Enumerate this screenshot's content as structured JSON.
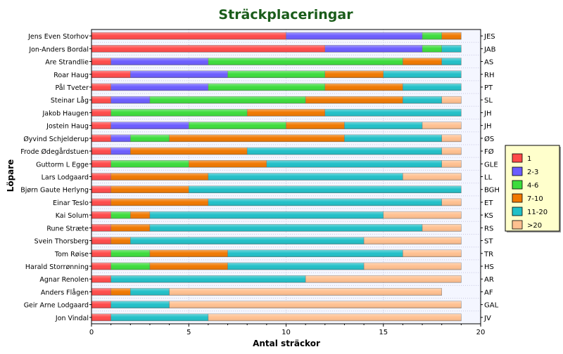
{
  "chart_data": {
    "type": "bar",
    "orientation": "horizontal",
    "stacked": true,
    "title": "Sträckplaceringar",
    "xlabel": "Antal sträckor",
    "ylabel": "Löpare",
    "xlim": [
      0,
      20
    ],
    "x_ticks": [
      "0",
      "5",
      "10",
      "15",
      "20"
    ],
    "grid": true,
    "legend_position": "right",
    "categories": [
      "Jens Even Storhov",
      "Jon-Anders Bordal",
      "Are Strandlie",
      "Roar Haug",
      "Pål Tveter",
      "Steinar Låg",
      "Jakob Haugen",
      "Jostein Haug",
      "Øyvind Schjelderup",
      "Frode Ødegårdstuen",
      "Guttorm L Egge",
      "Lars Lodgaard",
      "Bjørn Gaute Herlyng",
      "Einar Teslo",
      "Kai Solum",
      "Rune Stræte",
      "Svein Thorsberg",
      "Tom Røise",
      "Harald Storrønning",
      "Agnar Renolen",
      "Anders Flågen",
      "Geir Arne Lodgaard",
      "Jon Vindal"
    ],
    "initials": [
      "JES",
      "JAB",
      "AS",
      "RH",
      "PT",
      "SL",
      "JH",
      "JH",
      "ØS",
      "FØ",
      "GLE",
      "LL",
      "BGH",
      "ET",
      "KS",
      "RS",
      "ST",
      "TR",
      "HS",
      "AR",
      "AF",
      "GAL",
      "JV"
    ],
    "series": [
      {
        "name": "1",
        "color": "#ff4a4a",
        "values": [
          10,
          12,
          1,
          2,
          1,
          1,
          1,
          1,
          1,
          1,
          1,
          1,
          1,
          1,
          1,
          1,
          1,
          1,
          1,
          1,
          1,
          1,
          1
        ]
      },
      {
        "name": "2-3",
        "color": "#6b5cff",
        "values": [
          7,
          5,
          5,
          5,
          5,
          2,
          0,
          4,
          1,
          1,
          0,
          0,
          0,
          0,
          0,
          0,
          0,
          0,
          0,
          0,
          0,
          0,
          0
        ]
      },
      {
        "name": "4-6",
        "color": "#3cdc3c",
        "values": [
          1,
          1,
          10,
          5,
          6,
          8,
          7,
          5,
          2,
          0,
          4,
          0,
          0,
          0,
          1,
          0,
          0,
          2,
          2,
          0,
          0,
          0,
          0
        ]
      },
      {
        "name": "7-10",
        "color": "#f07800",
        "values": [
          1,
          0,
          2,
          3,
          4,
          5,
          4,
          3,
          9,
          6,
          4,
          5,
          4,
          5,
          1,
          2,
          1,
          4,
          4,
          0,
          1,
          0,
          0
        ]
      },
      {
        "name": "11-20",
        "color": "#21c0c8",
        "values": [
          0,
          1,
          1,
          4,
          3,
          2,
          7,
          4,
          5,
          10,
          9,
          10,
          14,
          12,
          12,
          14,
          12,
          9,
          7,
          10,
          2,
          3,
          5
        ]
      },
      {
        "name": ">20",
        "color": "#ffc090",
        "values": [
          0,
          0,
          0,
          0,
          0,
          1,
          0,
          2,
          1,
          1,
          1,
          3,
          0,
          1,
          4,
          2,
          5,
          3,
          5,
          8,
          14,
          15,
          13
        ]
      }
    ]
  }
}
